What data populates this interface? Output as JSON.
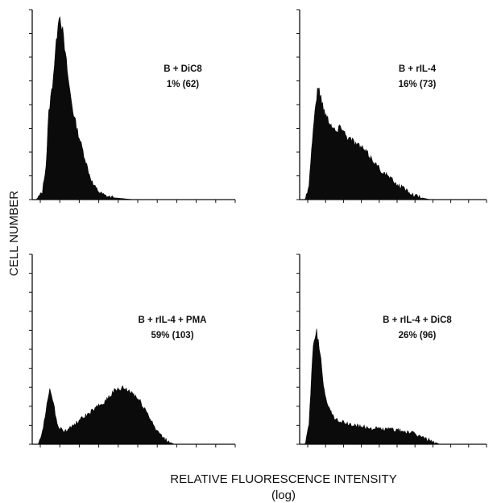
{
  "figure": {
    "ylabel": "CELL NUMBER",
    "xlabel_line1": "RELATIVE FLUORESCENCE INTENSITY",
    "xlabel_line2": "(log)"
  },
  "chart_data": [
    {
      "type": "area",
      "panel": "top-left",
      "label_line1": "B + DiC8",
      "label_line2": "1% (62)",
      "x_scale": "log",
      "grid": false,
      "color": "#0b0b0b",
      "x": [
        0.0,
        0.02,
        0.05,
        0.07,
        0.08,
        0.1,
        0.12,
        0.13,
        0.14,
        0.15,
        0.16,
        0.17,
        0.18,
        0.19,
        0.2,
        0.22,
        0.24,
        0.26,
        0.28,
        0.3,
        0.33,
        0.36,
        0.4,
        0.45,
        0.5,
        0.6,
        1.0
      ],
      "y": [
        0,
        0,
        0.04,
        0.2,
        0.45,
        0.62,
        0.85,
        1.0,
        0.97,
        0.9,
        0.8,
        0.72,
        0.62,
        0.55,
        0.48,
        0.38,
        0.3,
        0.22,
        0.14,
        0.08,
        0.04,
        0.02,
        0.01,
        0.005,
        0,
        0,
        0
      ]
    },
    {
      "type": "area",
      "panel": "top-right",
      "label_line1": "B + rIL-4",
      "label_line2": "16% (73)",
      "x_scale": "log",
      "grid": false,
      "color": "#0b0b0b",
      "x": [
        0.0,
        0.03,
        0.05,
        0.07,
        0.09,
        0.1,
        0.12,
        0.14,
        0.16,
        0.18,
        0.2,
        0.22,
        0.25,
        0.28,
        0.3,
        0.33,
        0.36,
        0.4,
        0.44,
        0.48,
        0.52,
        0.56,
        0.6,
        0.65,
        0.7,
        1.0
      ],
      "y": [
        0,
        0,
        0.08,
        0.35,
        0.55,
        0.6,
        0.52,
        0.45,
        0.42,
        0.38,
        0.36,
        0.4,
        0.34,
        0.32,
        0.3,
        0.28,
        0.25,
        0.2,
        0.15,
        0.12,
        0.08,
        0.06,
        0.03,
        0.01,
        0,
        0
      ]
    },
    {
      "type": "area",
      "panel": "bottom-left",
      "label_line1": "B + rIL-4 + PMA",
      "label_line2": "59% (103)",
      "x_scale": "log",
      "grid": false,
      "color": "#0b0b0b",
      "x": [
        0.0,
        0.03,
        0.05,
        0.07,
        0.09,
        0.1,
        0.12,
        0.14,
        0.16,
        0.18,
        0.2,
        0.25,
        0.3,
        0.35,
        0.4,
        0.45,
        0.5,
        0.55,
        0.6,
        0.63,
        0.66,
        0.7,
        0.75,
        1.0
      ],
      "y": [
        0,
        0,
        0.06,
        0.2,
        0.3,
        0.25,
        0.12,
        0.08,
        0.07,
        0.08,
        0.1,
        0.14,
        0.18,
        0.22,
        0.28,
        0.3,
        0.27,
        0.2,
        0.1,
        0.05,
        0.02,
        0,
        0,
        0
      ]
    },
    {
      "type": "area",
      "panel": "bottom-right",
      "label_line1": "B + rIL-4 + DiC8",
      "label_line2": "26% (96)",
      "x_scale": "log",
      "grid": false,
      "color": "#0b0b0b",
      "x": [
        0.0,
        0.03,
        0.05,
        0.07,
        0.09,
        0.1,
        0.12,
        0.13,
        0.15,
        0.17,
        0.2,
        0.25,
        0.3,
        0.35,
        0.4,
        0.45,
        0.5,
        0.55,
        0.6,
        0.65,
        0.7,
        0.75,
        1.0
      ],
      "y": [
        0,
        0,
        0.1,
        0.5,
        0.6,
        0.55,
        0.4,
        0.3,
        0.22,
        0.16,
        0.13,
        0.11,
        0.1,
        0.09,
        0.085,
        0.08,
        0.08,
        0.07,
        0.06,
        0.04,
        0.02,
        0,
        0
      ]
    }
  ]
}
